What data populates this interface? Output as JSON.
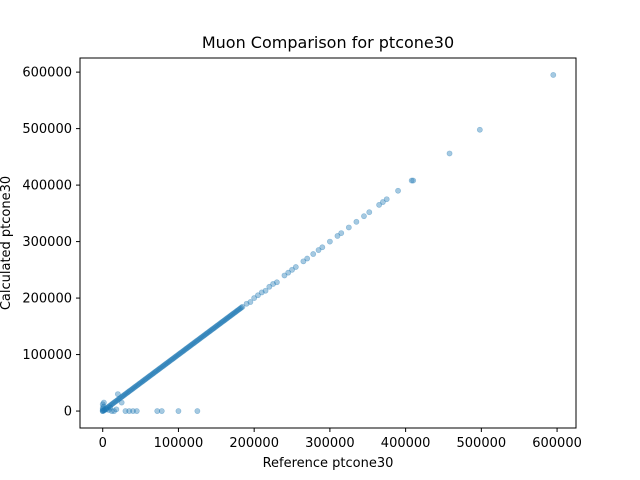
{
  "chart_data": {
    "type": "scatter",
    "title": "Muon Comparison for ptcone30",
    "xlabel": "Reference ptcone30",
    "ylabel": "Calculated ptcone30",
    "xlim": [
      -30000,
      625000
    ],
    "ylim": [
      -30000,
      625000
    ],
    "xticks": [
      0,
      100000,
      200000,
      300000,
      400000,
      500000,
      600000
    ],
    "yticks": [
      0,
      100000,
      200000,
      300000,
      400000,
      500000,
      600000
    ],
    "xtick_labels": [
      "0",
      "100000",
      "200000",
      "300000",
      "400000",
      "500000",
      "600000"
    ],
    "ytick_labels": [
      "0",
      "100000",
      "200000",
      "300000",
      "400000",
      "500000",
      "600000"
    ],
    "grid": false,
    "legend": "none",
    "marker_color": "#1f77b4",
    "marker_opacity": 0.4,
    "series": [
      {
        "name": "",
        "diagonal_band": {
          "from": 0,
          "to": 185000,
          "step": 1500
        },
        "points": [
          [
            0,
            0
          ],
          [
            0,
            2000
          ],
          [
            0,
            5000
          ],
          [
            1000,
            8000
          ],
          [
            0,
            12000
          ],
          [
            1500,
            15000
          ],
          [
            2000,
            1000
          ],
          [
            5000,
            3000
          ],
          [
            8000,
            2000
          ],
          [
            10000,
            6000
          ],
          [
            12000,
            0
          ],
          [
            15000,
            0
          ],
          [
            18000,
            3000
          ],
          [
            20000,
            30000
          ],
          [
            25000,
            15000
          ],
          [
            30000,
            0
          ],
          [
            35000,
            0
          ],
          [
            40000,
            0
          ],
          [
            45000,
            0
          ],
          [
            72000,
            0
          ],
          [
            78000,
            0
          ],
          [
            100000,
            0
          ],
          [
            125000,
            0
          ],
          [
            190000,
            190000
          ],
          [
            195000,
            193000
          ],
          [
            200000,
            200000
          ],
          [
            205000,
            205000
          ],
          [
            210000,
            210000
          ],
          [
            215000,
            213000
          ],
          [
            220000,
            220000
          ],
          [
            225000,
            225000
          ],
          [
            230000,
            228000
          ],
          [
            240000,
            240000
          ],
          [
            245000,
            245000
          ],
          [
            250000,
            250000
          ],
          [
            255000,
            255000
          ],
          [
            265000,
            265000
          ],
          [
            270000,
            270000
          ],
          [
            278000,
            278000
          ],
          [
            285000,
            285000
          ],
          [
            290000,
            290000
          ],
          [
            300000,
            300000
          ],
          [
            310000,
            310000
          ],
          [
            315000,
            315000
          ],
          [
            325000,
            325000
          ],
          [
            335000,
            335000
          ],
          [
            345000,
            345000
          ],
          [
            352000,
            352000
          ],
          [
            365000,
            365000
          ],
          [
            370000,
            370000
          ],
          [
            375000,
            375000
          ],
          [
            390000,
            390000
          ],
          [
            408000,
            408000
          ],
          [
            410000,
            408000
          ],
          [
            458000,
            456000
          ],
          [
            498000,
            498000
          ],
          [
            595000,
            595000
          ]
        ]
      }
    ]
  }
}
